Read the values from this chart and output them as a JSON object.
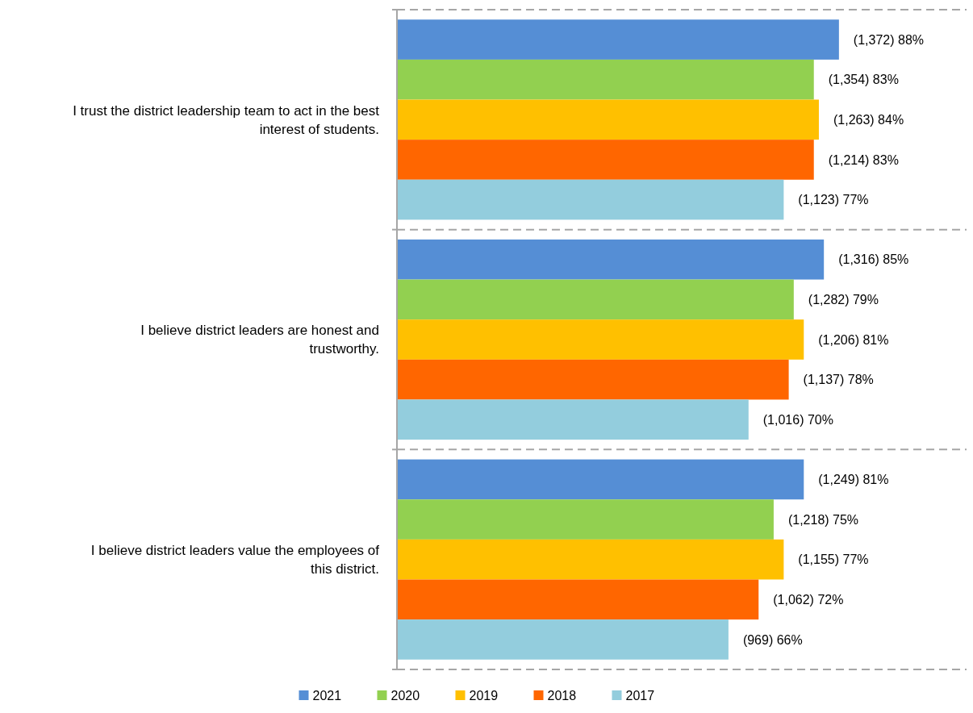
{
  "chart_data": {
    "type": "bar",
    "orientation": "horizontal",
    "categories": [
      "I trust the district leadership team to act in the best interest of students.",
      "I believe district leaders are honest and trustworthy.",
      "I believe district leaders value the employees of this district."
    ],
    "series": [
      {
        "name": "2021",
        "color": "#558ed5",
        "values": [
          88,
          85,
          81
        ],
        "value_labels": [
          "(1,372) 88%",
          "(1,316) 85%",
          "(1,249) 81%"
        ]
      },
      {
        "name": "2020",
        "color": "#92d050",
        "values": [
          83,
          79,
          75
        ],
        "value_labels": [
          "(1,354) 83%",
          "(1,282) 79%",
          "(1,218) 75%"
        ]
      },
      {
        "name": "2019",
        "color": "#ffc000",
        "values": [
          84,
          81,
          77
        ],
        "value_labels": [
          "(1,263) 84%",
          "(1,206) 81%",
          "(1,155) 77%"
        ]
      },
      {
        "name": "2018",
        "color": "#ff6600",
        "values": [
          83,
          78,
          72
        ],
        "value_labels": [
          "(1,214) 83%",
          "(1,137) 78%",
          "(1,062) 72%"
        ]
      },
      {
        "name": "2017",
        "color": "#93cddd",
        "values": [
          77,
          70,
          66
        ],
        "value_labels": [
          "(1,123) 77%",
          "(1,016) 70%",
          "(969) 66%"
        ]
      }
    ],
    "grid": "y",
    "legend": "bottom"
  }
}
